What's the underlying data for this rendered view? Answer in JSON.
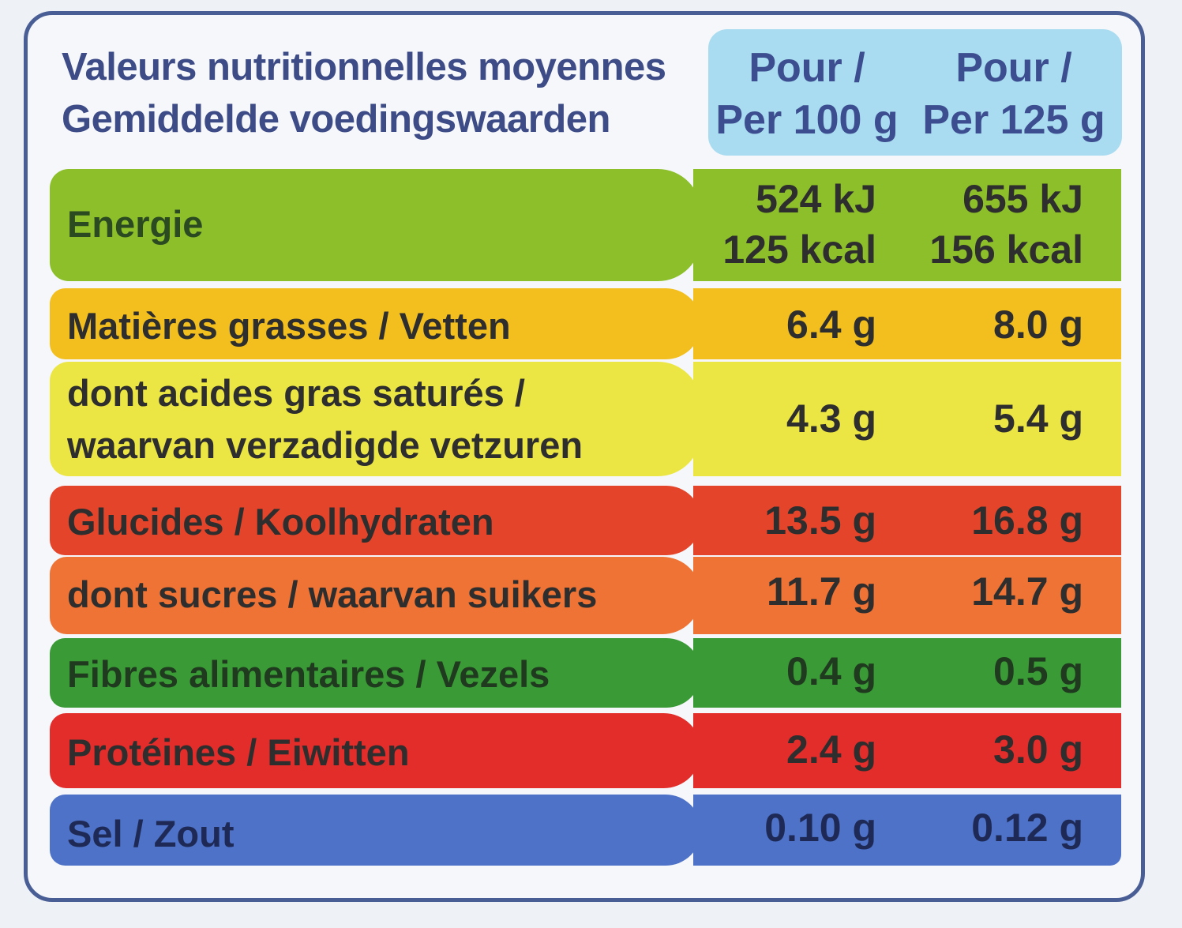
{
  "header": {
    "title_fr": "Valeurs nutritionnelles moyennes",
    "title_nl": "Gemiddelde voedingswaarden",
    "col1_line1": "Pour /",
    "col1_line2": "Per 100 g",
    "col2_line1": "Pour /",
    "col2_line2": "Per 125 g"
  },
  "rows": [
    {
      "label": "Energie",
      "v100_a": "524 kJ",
      "v100_b": "125 kcal",
      "v125_a": "655 kJ",
      "v125_b": "156 kcal",
      "color": "#8cbf2a"
    },
    {
      "label": "Matières grasses / Vetten",
      "v100": "6.4 g",
      "v125": "8.0 g",
      "color": "#f2bf1e"
    },
    {
      "label_l1": "dont acides gras saturés /",
      "label_l2": "waarvan verzadigde vetzuren",
      "v100": "4.3 g",
      "v125": "5.4 g",
      "color": "#ece644"
    },
    {
      "label": "Glucides / Koolhydraten",
      "v100": "13.5 g",
      "v125": "16.8 g",
      "color": "#e4452a"
    },
    {
      "label": "dont sucres / waarvan suikers",
      "v100": "11.7 g",
      "v125": "14.7 g",
      "color": "#ee7334"
    },
    {
      "label": "Fibres alimentaires / Vezels",
      "v100": "0.4 g",
      "v125": "0.5 g",
      "color": "#3a9a36"
    },
    {
      "label": "Protéines / Eiwitten",
      "v100": "2.4 g",
      "v125": "3.0 g",
      "color": "#e22d2b"
    },
    {
      "label": "Sel / Zout",
      "v100": "0.10 g",
      "v125": "0.12 g",
      "color": "#4d72c8"
    }
  ]
}
